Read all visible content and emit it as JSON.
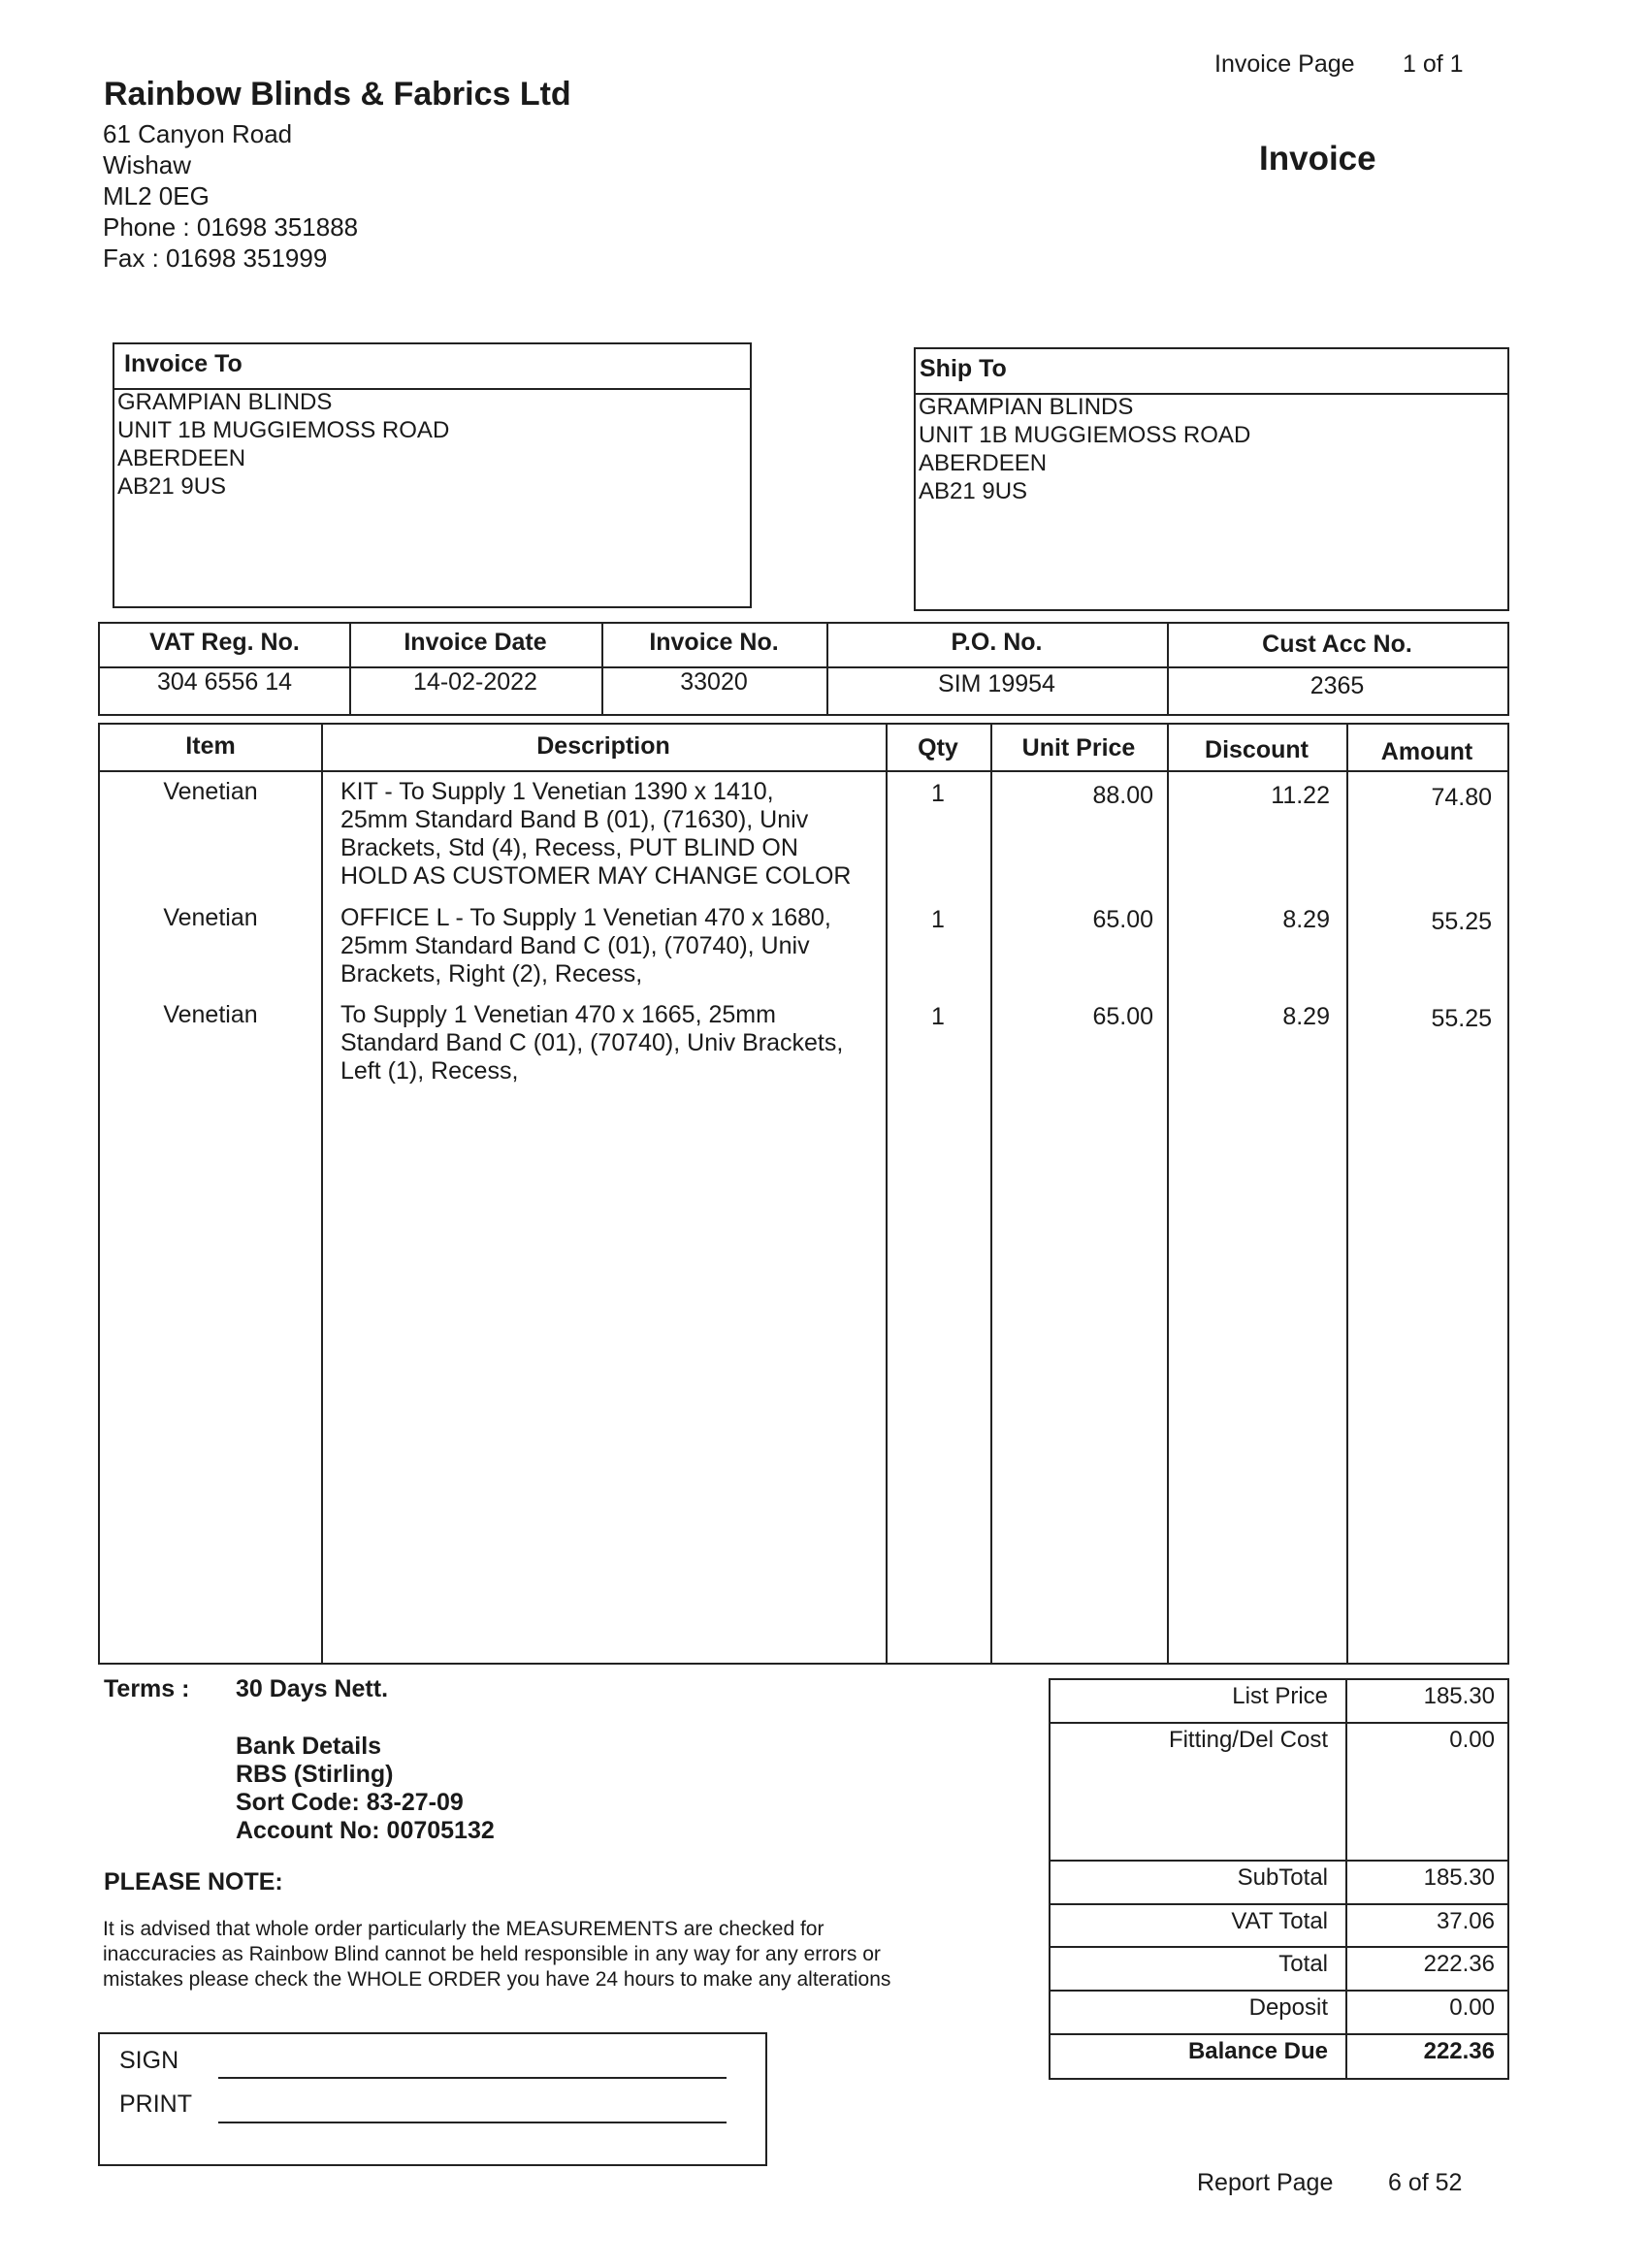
{
  "header": {
    "page_label": "Invoice  Page",
    "page_value": "1 of 1",
    "doc_title": "Invoice"
  },
  "company": {
    "name": "Rainbow Blinds & Fabrics Ltd",
    "lines": [
      "61 Canyon Road",
      "Wishaw",
      "ML2 0EG",
      "Phone : 01698 351888",
      "Fax : 01698 351999"
    ]
  },
  "invoice_to": {
    "title": "Invoice To",
    "lines": [
      "GRAMPIAN BLINDS",
      "UNIT 1B MUGGIEMOSS ROAD",
      "ABERDEEN",
      "AB21 9US"
    ]
  },
  "ship_to": {
    "title": "Ship To",
    "lines": [
      "GRAMPIAN BLINDS",
      "UNIT 1B MUGGIEMOSS ROAD",
      "ABERDEEN",
      "AB21 9US"
    ]
  },
  "info": {
    "headers": [
      "VAT Reg. No.",
      "Invoice Date",
      "Invoice No.",
      "P.O. No.",
      "Cust Acc No."
    ],
    "values": [
      "304 6556 14",
      "14-02-2022",
      "33020",
      "SIM 19954",
      "2365"
    ]
  },
  "items": {
    "headers": [
      "Item",
      "Description",
      "Qty",
      "Unit Price",
      "Discount",
      "Amount"
    ],
    "rows": [
      {
        "item": "Venetian",
        "description": "KIT -  To Supply 1 Venetian  1390 x 1410,\n25mm Standard Band B (01), (71630), Univ\nBrackets, Std (4), Recess, PUT BLIND ON\nHOLD AS CUSTOMER MAY CHANGE COLOR",
        "qty": "1",
        "unit_price": "88.00",
        "discount": "11.22",
        "amount": "74.80"
      },
      {
        "item": "Venetian",
        "description": "OFFICE L -  To Supply 1 Venetian  470 x 1680,\n25mm Standard Band C (01), (70740), Univ\nBrackets, Right (2), Recess,",
        "qty": "1",
        "unit_price": "65.00",
        "discount": "8.29",
        "amount": "55.25"
      },
      {
        "item": "Venetian",
        "description": "To Supply 1 Venetian  470 x 1665, 25mm\nStandard Band C (01), (70740), Univ Brackets,\nLeft (1), Recess,",
        "qty": "1",
        "unit_price": "65.00",
        "discount": "8.29",
        "amount": "55.25"
      }
    ]
  },
  "terms": {
    "label": "Terms :",
    "value": "30 Days Nett."
  },
  "bank": [
    "Bank Details",
    "RBS (Stirling)",
    "Sort Code: 83-27-09",
    "Account No: 00705132"
  ],
  "note": {
    "title": "PLEASE NOTE:",
    "lines": [
      "It is advised that whole order particularly the MEASUREMENTS are checked for",
      "inaccuracies as Rainbow Blind cannot be held responsible in any way for any errors or",
      "mistakes please check the WHOLE ORDER you have 24 hours to make any alterations"
    ]
  },
  "sign": {
    "sign_label": "SIGN",
    "print_label": "PRINT"
  },
  "totals": [
    {
      "label": "List Price",
      "value": "185.30"
    },
    {
      "label": "Fitting/Del Cost",
      "value": "0.00"
    },
    {
      "label": "SubTotal",
      "value": "185.30"
    },
    {
      "label": "VAT Total",
      "value": "37.06"
    },
    {
      "label": "Total",
      "value": "222.36"
    },
    {
      "label": "Deposit",
      "value": "0.00"
    },
    {
      "label": "Balance Due",
      "value": "222.36"
    }
  ],
  "footer": {
    "label": "Report Page",
    "value": "6 of 52"
  }
}
